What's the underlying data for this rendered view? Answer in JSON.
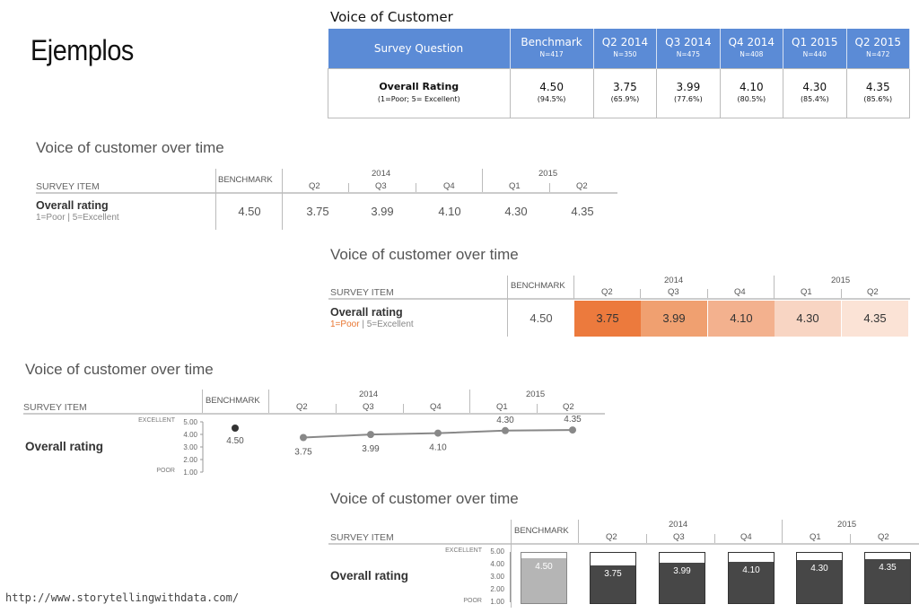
{
  "heading": "Ejemplos",
  "url": "http://www.storytellingwithdata.com/",
  "table1": {
    "caption": "Voice of Customer",
    "col_question": "Survey Question",
    "columns": [
      {
        "label": "Benchmark",
        "n": "N=417"
      },
      {
        "label": "Q2 2014",
        "n": "N=350"
      },
      {
        "label": "Q3 2014",
        "n": "N=475"
      },
      {
        "label": "Q4 2014",
        "n": "N=408"
      },
      {
        "label": "Q1 2015",
        "n": "N=440"
      },
      {
        "label": "Q2 2015",
        "n": "N=472"
      }
    ],
    "row_label": "Overall Rating",
    "row_sub": "(1=Poor; 5= Excellent)",
    "values": [
      {
        "v": "4.50",
        "p": "(94.5%)"
      },
      {
        "v": "3.75",
        "p": "(65.9%)"
      },
      {
        "v": "3.99",
        "p": "(77.6%)"
      },
      {
        "v": "4.10",
        "p": "(80.5%)"
      },
      {
        "v": "4.30",
        "p": "(85.4%)"
      },
      {
        "v": "4.35",
        "p": "(85.6%)"
      }
    ]
  },
  "common": {
    "title": "Voice of customer over time",
    "survey_item": "SURVEY ITEM",
    "benchmark": "BENCHMARK",
    "year1": "2014",
    "year2": "2015",
    "quarters": [
      "Q2",
      "Q3",
      "Q4",
      "Q1",
      "Q2"
    ],
    "row_label": "Overall rating",
    "row_sub_a": "1=Poor",
    "row_sub_sep": "|",
    "row_sub_b": "5=Excellent",
    "benchmark_value": "4.50",
    "values": [
      "3.75",
      "3.99",
      "4.10",
      "4.30",
      "4.35"
    ]
  },
  "heat_colors": [
    "#ec7a3d",
    "#f0a070",
    "#f3b18e",
    "#f8d5c3",
    "#fbe3d6"
  ],
  "axis": {
    "excellent": "EXCELLENT",
    "poor": "POOR",
    "ticks": [
      "5.00",
      "4.00",
      "3.00",
      "2.00",
      "1.00"
    ]
  },
  "chart_data": {
    "type": "line",
    "title": "Voice of customer over time",
    "categories": [
      "Q2 2014",
      "Q3 2014",
      "Q4 2014",
      "Q1 2015",
      "Q2 2015"
    ],
    "series": [
      {
        "name": "Overall rating",
        "values": [
          3.75,
          3.99,
          4.1,
          4.3,
          4.35
        ]
      }
    ],
    "benchmark": 4.5,
    "ylim": [
      1,
      5
    ]
  }
}
